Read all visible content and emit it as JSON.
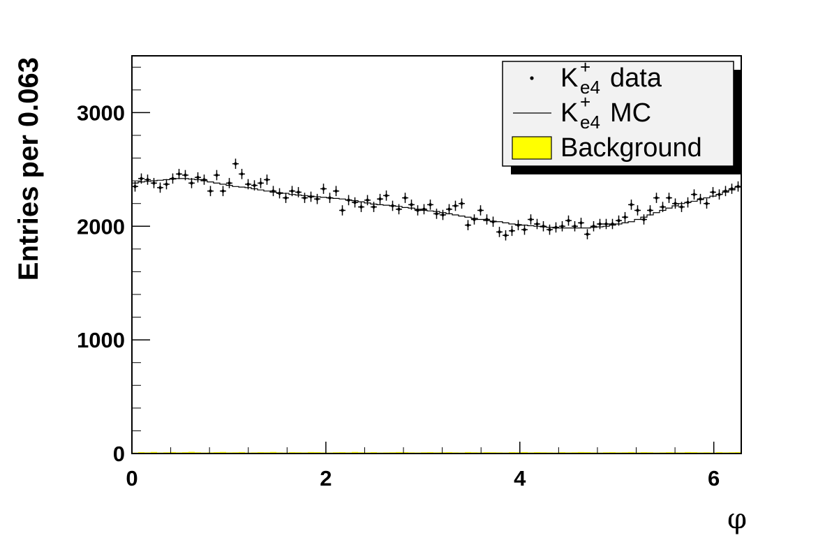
{
  "chart_data": {
    "type": "histogram",
    "xlabel": "φ",
    "ylabel": "Entries per 0.063",
    "xlim": [
      0,
      6.283
    ],
    "ylim": [
      0,
      3500
    ],
    "bin_width": 0.063,
    "x_ticks": [
      0,
      2,
      4,
      6
    ],
    "y_ticks": [
      0,
      1000,
      2000,
      3000
    ],
    "grid": false,
    "legend_position": "top-right",
    "legend": [
      {
        "symbol": "marker",
        "base": "K",
        "superscript": "+",
        "subscript": "e4",
        "text": "data"
      },
      {
        "symbol": "line",
        "base": "K",
        "superscript": "+",
        "subscript": "e4",
        "text": "MC"
      },
      {
        "symbol": "fill",
        "text": "Background",
        "color": "#ffff00"
      }
    ],
    "series": [
      {
        "name": "K+e4 data",
        "kind": "points_with_errors",
        "error": 45,
        "values": [
          2350,
          2420,
          2410,
          2380,
          2340,
          2370,
          2420,
          2460,
          2450,
          2380,
          2430,
          2410,
          2310,
          2450,
          2310,
          2380,
          2550,
          2460,
          2370,
          2360,
          2380,
          2410,
          2310,
          2290,
          2250,
          2310,
          2300,
          2250,
          2260,
          2240,
          2330,
          2250,
          2310,
          2140,
          2230,
          2210,
          2170,
          2230,
          2170,
          2240,
          2270,
          2180,
          2150,
          2250,
          2190,
          2140,
          2150,
          2190,
          2110,
          2100,
          2150,
          2180,
          2200,
          2010,
          2060,
          2140,
          2060,
          2040,
          1950,
          1920,
          1960,
          2010,
          1970,
          2060,
          2020,
          2000,
          1970,
          1990,
          2000,
          2050,
          2000,
          2030,
          1930,
          2000,
          2020,
          2020,
          2020,
          2050,
          2080,
          2190,
          2140,
          2060,
          2140,
          2250,
          2170,
          2250,
          2200,
          2170,
          2210,
          2280,
          2240,
          2200,
          2300,
          2280,
          2310,
          2330,
          2350
        ]
      },
      {
        "name": "K+e4 MC",
        "kind": "step",
        "color": "#000000",
        "values": [
          2380,
          2390,
          2395,
          2400,
          2405,
          2410,
          2415,
          2420,
          2420,
          2415,
          2410,
          2400,
          2390,
          2380,
          2370,
          2360,
          2350,
          2345,
          2340,
          2330,
          2320,
          2310,
          2300,
          2295,
          2290,
          2280,
          2275,
          2270,
          2265,
          2260,
          2255,
          2250,
          2245,
          2240,
          2232,
          2225,
          2215,
          2205,
          2195,
          2190,
          2185,
          2180,
          2175,
          2165,
          2160,
          2150,
          2140,
          2135,
          2130,
          2120,
          2110,
          2100,
          2090,
          2080,
          2070,
          2060,
          2050,
          2045,
          2040,
          2030,
          2020,
          2015,
          2010,
          2005,
          2000,
          1995,
          1990,
          1985,
          1985,
          1985,
          1985,
          1985,
          1985,
          1990,
          1995,
          2000,
          2010,
          2020,
          2030,
          2040,
          2060,
          2080,
          2100,
          2120,
          2140,
          2160,
          2180,
          2200,
          2210,
          2220,
          2235,
          2250,
          2265,
          2280,
          2300,
          2320,
          2345
        ]
      },
      {
        "name": "Background",
        "kind": "filled_histogram",
        "color": "#ffff00",
        "values": [
          8,
          12,
          10,
          14,
          9,
          11,
          13,
          10,
          12,
          15,
          11,
          9,
          10,
          12,
          14,
          10,
          11,
          13,
          9,
          10,
          12,
          11,
          14,
          10,
          9,
          12,
          11,
          10,
          13,
          12,
          10,
          9,
          11,
          12,
          10,
          14,
          11,
          10,
          12,
          9,
          10,
          11,
          13,
          12,
          10,
          9,
          11,
          12,
          10,
          11,
          12,
          10,
          9,
          13,
          11,
          10,
          12,
          11,
          10,
          9,
          12,
          11,
          13,
          10,
          12,
          11,
          10,
          9,
          12,
          10,
          11,
          13,
          12,
          10,
          9,
          11,
          12,
          10,
          11,
          13,
          10,
          12,
          11,
          9,
          10,
          12,
          11,
          10,
          13,
          12,
          10,
          11,
          9,
          12,
          10,
          11,
          12
        ]
      }
    ]
  }
}
